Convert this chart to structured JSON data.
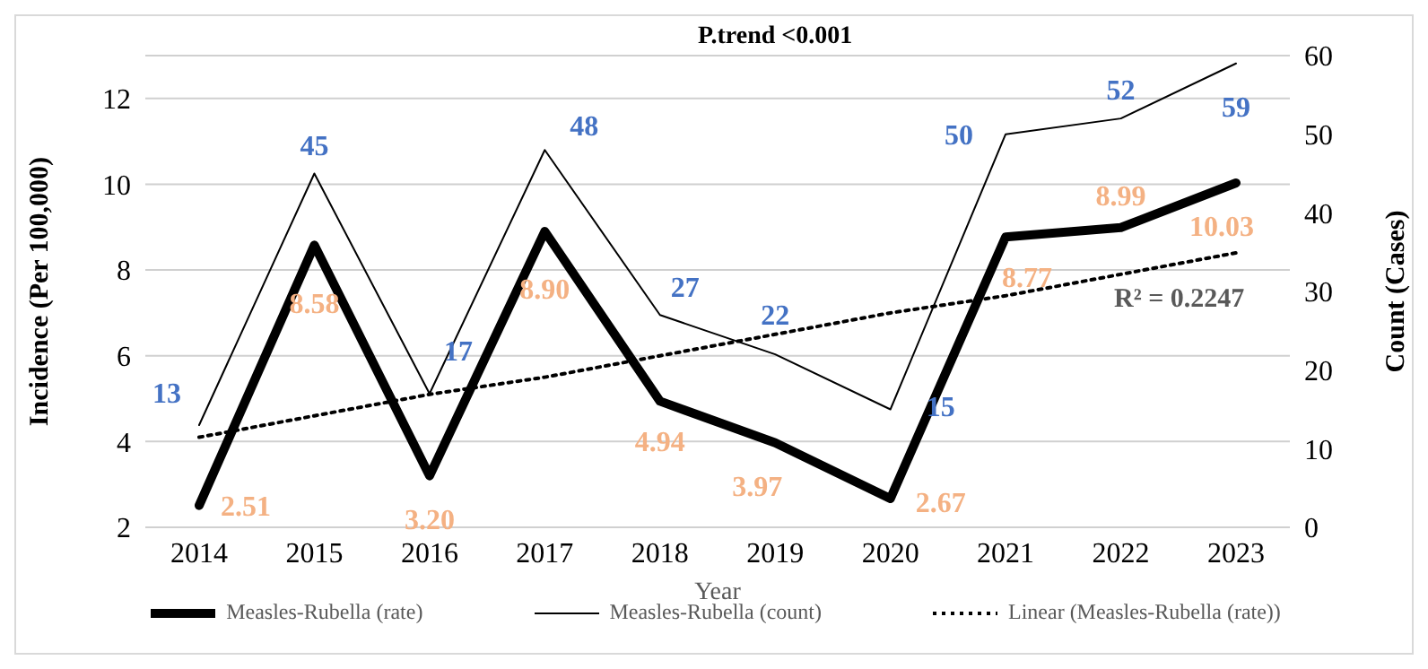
{
  "chart_data": {
    "type": "line",
    "xlabel": "Year",
    "ylabel": "Incidence (Per 100,000)",
    "y2label": "Count (Cases)",
    "annotations": [
      "P.trend <0.001",
      "R² = 0.2247"
    ],
    "categories": [
      "2014",
      "2015",
      "2016",
      "2017",
      "2018",
      "2019",
      "2020",
      "2021",
      "2022",
      "2023"
    ],
    "series": [
      {
        "name": "Measles-Rubella (rate)",
        "color": "#000000",
        "values": [
          2.51,
          8.58,
          3.2,
          8.9,
          4.94,
          3.97,
          2.67,
          8.77,
          8.99,
          10.03
        ],
        "value_labels": [
          "2.51",
          "8.58",
          "3.20",
          "8.90",
          "4.94",
          "3.97",
          "2.67",
          "8.77",
          "8.99",
          "10.03"
        ]
      },
      {
        "name": "Measles-Rubella (count)",
        "color": "#000000",
        "axis": "y2",
        "values": [
          13,
          45,
          17,
          48,
          27,
          22,
          15,
          50,
          52,
          59
        ],
        "value_labels": [
          "13",
          "45",
          "17",
          "48",
          "27",
          "22",
          "15",
          "50",
          "52",
          "59"
        ]
      },
      {
        "name": "Linear (Measles-Rubella (rate))",
        "color": "#000000",
        "line_style": "dotted",
        "values": [
          4.1,
          4.6,
          5.1,
          5.5,
          6.0,
          6.5,
          7.0,
          7.4,
          7.9,
          8.4
        ]
      }
    ],
    "ylim": [
      2,
      13
    ],
    "yticks": [
      2,
      4,
      6,
      8,
      10,
      12
    ],
    "y2lim": [
      0,
      60
    ],
    "y2ticks": [
      0,
      10,
      20,
      30,
      40,
      50,
      60
    ],
    "grid": "y",
    "legend": "bottom",
    "marker": "none"
  }
}
